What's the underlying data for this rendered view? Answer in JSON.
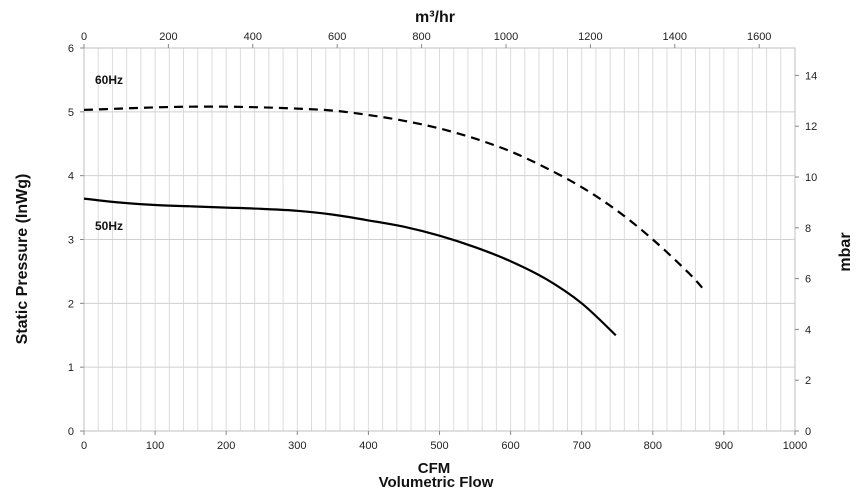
{
  "chart_data": {
    "type": "line",
    "title": "",
    "grid": true,
    "x_bottom": {
      "label": "CFM",
      "sublabel": "Volumetric Flow",
      "range": [
        0,
        1000
      ],
      "ticks": [
        "0",
        "100",
        "200",
        "300",
        "400",
        "500",
        "600",
        "700",
        "800",
        "900",
        "1000"
      ]
    },
    "x_top": {
      "label": "m³/hr",
      "ticks": [
        "0",
        "200",
        "400",
        "600",
        "800",
        "1000",
        "1200",
        "1400",
        "1600"
      ]
    },
    "y_left": {
      "label": "Static Pressure (InWg)",
      "range": [
        0,
        6
      ],
      "ticks": [
        "0",
        "1",
        "2",
        "3",
        "4",
        "5",
        "6"
      ]
    },
    "y_right": {
      "label": "mbar",
      "ticks": [
        "0",
        "2",
        "4",
        "6",
        "8",
        "10",
        "12",
        "14"
      ]
    },
    "series": [
      {
        "name": "60Hz",
        "style": "dashed",
        "color": "#000000",
        "points": [
          [
            0,
            5.03
          ],
          [
            50,
            5.05
          ],
          [
            100,
            5.07
          ],
          [
            150,
            5.08
          ],
          [
            200,
            5.08
          ],
          [
            250,
            5.07
          ],
          [
            300,
            5.05
          ],
          [
            350,
            5.02
          ],
          [
            400,
            4.95
          ],
          [
            450,
            4.86
          ],
          [
            500,
            4.74
          ],
          [
            550,
            4.58
          ],
          [
            600,
            4.38
          ],
          [
            650,
            4.12
          ],
          [
            700,
            3.82
          ],
          [
            750,
            3.45
          ],
          [
            800,
            3.0
          ],
          [
            850,
            2.48
          ],
          [
            873,
            2.2
          ]
        ]
      },
      {
        "name": "50Hz",
        "style": "solid",
        "color": "#000000",
        "points": [
          [
            0,
            3.64
          ],
          [
            50,
            3.58
          ],
          [
            100,
            3.54
          ],
          [
            150,
            3.52
          ],
          [
            200,
            3.5
          ],
          [
            250,
            3.48
          ],
          [
            300,
            3.45
          ],
          [
            350,
            3.39
          ],
          [
            400,
            3.3
          ],
          [
            450,
            3.2
          ],
          [
            500,
            3.06
          ],
          [
            550,
            2.88
          ],
          [
            600,
            2.66
          ],
          [
            650,
            2.38
          ],
          [
            700,
            2.0
          ],
          [
            748,
            1.5
          ]
        ]
      }
    ]
  }
}
